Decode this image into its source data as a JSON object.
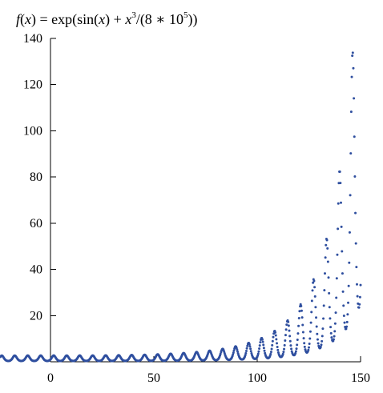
{
  "chart_data": {
    "type": "scatter",
    "title": "f(x) = exp(sin(x) + x³/(8 ∗ 10⁵))",
    "title_parts": {
      "f": "f",
      "x_var": "x",
      "lhs_tail": ") = exp(sin(",
      "mid": ") + ",
      "cube_exp": "3",
      "denominator_open": "/(8 ∗ 10",
      "ten_exp": "5",
      "close": "))"
    },
    "function": "exp(sin(x) + x^3/(8*10^5))",
    "x_range": [
      -25,
      150
    ],
    "x_step": 0.25,
    "xlim": [
      -25,
      150
    ],
    "ylim": [
      0,
      140
    ],
    "x_ticks": [
      0,
      50,
      100,
      150
    ],
    "y_ticks": [
      20,
      40,
      60,
      80,
      100,
      120,
      140
    ],
    "x_tick_labels": [
      "0",
      "50",
      "100",
      "150"
    ],
    "y_tick_labels": [
      "20",
      "40",
      "60",
      "80",
      "100",
      "120",
      "140"
    ],
    "xlabel": "",
    "ylabel": "",
    "grid": false,
    "legend": "none",
    "marker_color": "#2f4f9f"
  }
}
